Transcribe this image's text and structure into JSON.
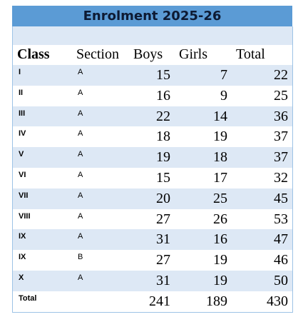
{
  "header": {
    "title": "Enrolment 2025-26"
  },
  "table": {
    "columns": [
      "Class",
      "Section",
      "Boys",
      "Girls",
      "Total"
    ],
    "rows": [
      [
        "I",
        "A",
        15,
        7,
        22
      ],
      [
        "II",
        "A",
        16,
        9,
        25
      ],
      [
        "III",
        "A",
        22,
        14,
        36
      ],
      [
        "IV",
        "A",
        18,
        19,
        37
      ],
      [
        "V",
        "A",
        19,
        18,
        37
      ],
      [
        "VI",
        "A",
        15,
        17,
        32
      ],
      [
        "VII",
        "A",
        20,
        25,
        45
      ],
      [
        "VIII",
        "A",
        27,
        26,
        53
      ],
      [
        "IX",
        "A",
        31,
        16,
        47
      ],
      [
        "IX",
        "B",
        27,
        19,
        46
      ],
      [
        "X",
        "A",
        31,
        19,
        50
      ]
    ],
    "total": {
      "label": "Total",
      "values": [
        241,
        189,
        430
      ]
    }
  }
}
